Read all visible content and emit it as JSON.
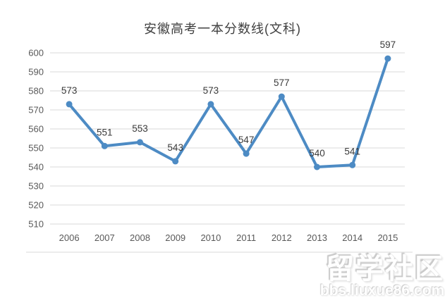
{
  "page": {
    "background": "#ffffff"
  },
  "chart_data": {
    "type": "line",
    "title": "安徽高考一本分数线(文科)",
    "categories": [
      "2006",
      "2007",
      "2008",
      "2009",
      "2010",
      "2011",
      "2012",
      "2013",
      "2014",
      "2015"
    ],
    "values": [
      573,
      551,
      553,
      543,
      573,
      547,
      577,
      540,
      541,
      597
    ],
    "xlabel": "",
    "ylabel": "",
    "ylim": [
      510,
      600
    ],
    "ytick_step": 10,
    "grid": true,
    "legend": "none",
    "data_labels_visible": true,
    "line_color": "#4D8BC4",
    "gridline_color": "#D9D9D9",
    "axis_text_color": "#595959",
    "label_text_color": "#3B3B3B",
    "title_color": "#404040"
  },
  "watermark": {
    "line1": "留学社区",
    "line2": "bbs.liuxue86.com"
  }
}
